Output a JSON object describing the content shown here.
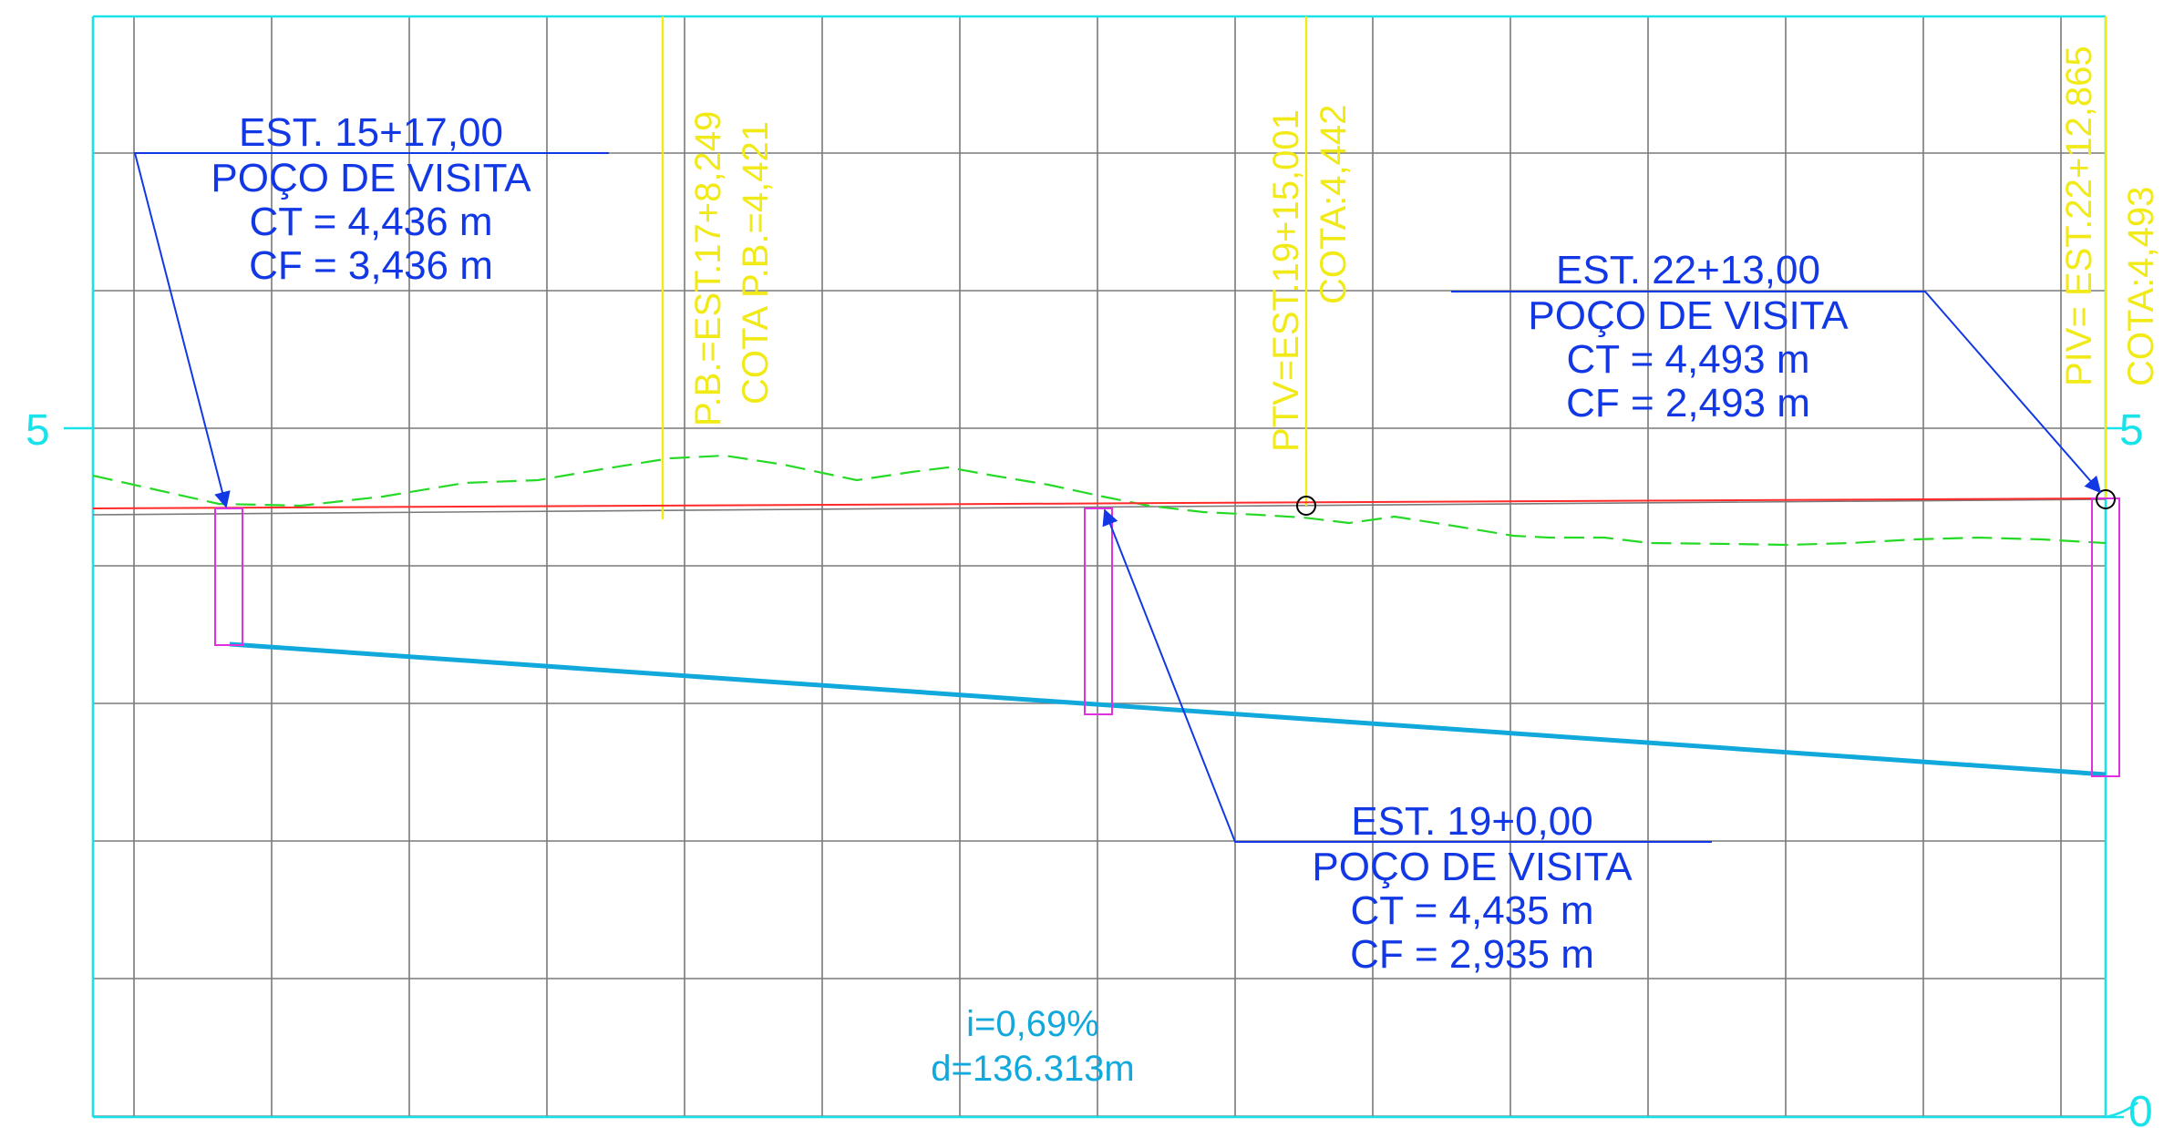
{
  "axis": {
    "left_tick": "5",
    "right_tick_top": "5",
    "right_tick_bottom": "0"
  },
  "manholes": [
    {
      "station": "EST. 15+17,00",
      "type": "POÇO DE VISITA",
      "ct": "CT = 4,436 m",
      "cf": "CF = 3,436 m"
    },
    {
      "station": "EST. 19+0,00",
      "type": "POÇO DE VISITA",
      "ct": "CT = 4,435 m",
      "cf": "CF = 2,935 m"
    },
    {
      "station": "EST. 22+13,00",
      "type": "POÇO DE VISITA",
      "ct": "CT = 4,493 m",
      "cf": "CF = 2,493 m"
    }
  ],
  "vertical_markers": [
    {
      "line1": "P.B.=EST.17+8,249",
      "line2": "COTA P.B.=4,421"
    },
    {
      "line1": "PTV=EST.19+15,001",
      "line2": "COTA:4,442"
    },
    {
      "line1": "PIV= EST.22+12,865",
      "line2": "COTA:4,493"
    }
  ],
  "pipe": {
    "slope": "i=0,69%",
    "length": "d=136.313m"
  },
  "colors": {
    "grid": "#7a7a7a",
    "frame": "#19e3ea",
    "ground_profile": "#27d927",
    "design_grade": "#ff2a2a",
    "pipe": "#11a8dc",
    "manhole": "#e030e0",
    "annotation": "#1238e6",
    "marker": "#f2ea16"
  }
}
